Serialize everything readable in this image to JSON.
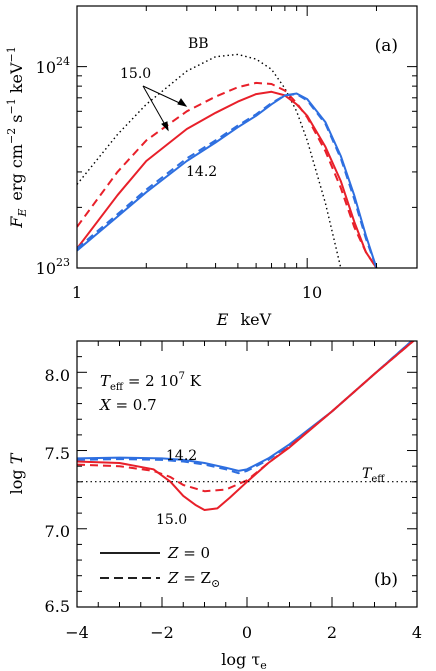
{
  "colors": {
    "red": "#e8202a",
    "blue": "#2e6fe0",
    "black": "#000000"
  },
  "chart_data": [
    {
      "type": "line",
      "panel_label": "(a)",
      "xscale": "log",
      "yscale": "log",
      "xlim": [
        1,
        30
      ],
      "ylim": [
        1e+23,
        2e+24
      ],
      "xlabel": {
        "main": "E",
        "unit": "keV"
      },
      "ylabel": {
        "symbol": "F",
        "sub": "E",
        "unit": "erg cm",
        "e1": "−2",
        "mid": " s",
        "e2": "−1",
        "end": " keV",
        "e3": "−1"
      },
      "x_tick_labels": [
        {
          "x": 1,
          "text": "1"
        },
        {
          "x": 10,
          "text": "10"
        }
      ],
      "y_tick_labels": [
        {
          "y": 1e+23,
          "base": "10",
          "exp": "23"
        },
        {
          "y": 1e+24,
          "base": "10",
          "exp": "24"
        }
      ],
      "annotations": {
        "bb": "BB",
        "logg_high": "15.0",
        "logg_low": "14.2"
      },
      "series": [
        {
          "label": "BB",
          "color": "black",
          "style": "dotted",
          "x": [
            1,
            1.5,
            2,
            3,
            4,
            5,
            6,
            7,
            8,
            9,
            10,
            12,
            14
          ],
          "y": [
            2.6e+23,
            4.6e+23,
            6.5e+23,
            9.5e+23,
            1.12e+24,
            1.15e+24,
            1.09e+24,
            9.7e+23,
            7.8e+23,
            6e+23,
            4.3e+23,
            2.1e+23,
            1e+23
          ]
        },
        {
          "label": "15.0",
          "color": "red",
          "style": "dashed",
          "x": [
            1,
            1.5,
            2,
            3,
            4,
            5,
            6,
            7,
            8,
            9,
            10,
            12,
            14,
            16,
            18,
            20
          ],
          "y": [
            1.6e+23,
            3e+23,
            4.3e+23,
            6e+23,
            7.1e+23,
            7.9e+23,
            8.3e+23,
            8.2e+23,
            7.6e+23,
            6.6e+23,
            5.6e+23,
            3.8e+23,
            2.5e+23,
            1.6e+23,
            1.2e+23,
            1e+23
          ]
        },
        {
          "label": "15.0",
          "color": "red",
          "style": "solid",
          "x": [
            1,
            1.5,
            2,
            3,
            4,
            5,
            6,
            7,
            8,
            9,
            10,
            12,
            14,
            16,
            18,
            20
          ],
          "y": [
            1.25e+23,
            2.3e+23,
            3.4e+23,
            4.9e+23,
            5.9e+23,
            6.7e+23,
            7.3e+23,
            7.5e+23,
            7.2e+23,
            6.5e+23,
            5.7e+23,
            4e+23,
            2.7e+23,
            1.7e+23,
            1.2e+23,
            1e+23
          ]
        },
        {
          "label": "14.2",
          "color": "blue",
          "style": "dashed",
          "x": [
            1,
            1.5,
            2,
            3,
            4,
            5,
            6,
            7,
            8,
            9,
            10,
            12,
            14,
            16,
            18,
            20
          ],
          "y": [
            1.25e+23,
            1.85e+23,
            2.45e+23,
            3.5e+23,
            4.3e+23,
            5.1e+23,
            5.8e+23,
            6.6e+23,
            7.2e+23,
            7.3e+23,
            6.8e+23,
            5.2e+23,
            3.5e+23,
            2.2e+23,
            1.4e+23,
            1e+23
          ]
        },
        {
          "label": "14.2",
          "color": "blue",
          "style": "solid",
          "x": [
            1,
            1.5,
            2,
            3,
            4,
            5,
            6,
            7,
            8,
            9,
            10,
            12,
            14,
            16,
            18,
            20
          ],
          "y": [
            1.22e+23,
            1.8e+23,
            2.38e+23,
            3.4e+23,
            4.2e+23,
            5e+23,
            5.7e+23,
            6.5e+23,
            7.2e+23,
            7.35e+23,
            6.9e+23,
            5.3e+23,
            3.6e+23,
            2.3e+23,
            1.45e+23,
            1e+23
          ]
        }
      ]
    },
    {
      "type": "line",
      "panel_label": "(b)",
      "xlim": [
        -4,
        4
      ],
      "ylim": [
        6.5,
        8.2
      ],
      "xlabel": {
        "main": "log τ",
        "sub": "e"
      },
      "ylabel": {
        "main": "log ",
        "symbol": "T"
      },
      "x_tick_labels": [
        "−4",
        "−2",
        "0",
        "2",
        "4"
      ],
      "x_ticks": [
        -4,
        -2,
        0,
        2,
        4
      ],
      "y_ticks": [
        6.5,
        7.0,
        7.5,
        8.0
      ],
      "y_tick_labels": [
        "6.5",
        "7.0",
        "7.5",
        "8.0"
      ],
      "params": {
        "teff_sym": "T",
        "teff_sub": "eff",
        "teff_val": " = 2 10",
        "teff_exp": "7",
        "teff_unit": " K",
        "x_sym": "X",
        "x_val": " = 0.7"
      },
      "t_eff_label": {
        "sym": "T",
        "sub": "eff"
      },
      "t_eff_value": 7.301,
      "annotations": {
        "upper": "14.2",
        "lower": "15.0"
      },
      "legend": {
        "placement": "bottom-left",
        "entries": [
          {
            "style": "solid",
            "sym": "Z",
            "text": " = 0"
          },
          {
            "style": "dashed",
            "sym": "Z",
            "text": " = Z",
            "sub": "⊙"
          }
        ]
      },
      "series": [
        {
          "label": "14.2",
          "color": "blue",
          "style": "solid",
          "x": [
            -4,
            -3,
            -2,
            -1.5,
            -1,
            -0.5,
            -0.2,
            0,
            0.5,
            1,
            2,
            3,
            4
          ],
          "y": [
            7.45,
            7.455,
            7.45,
            7.44,
            7.42,
            7.39,
            7.37,
            7.38,
            7.45,
            7.54,
            7.75,
            7.99,
            8.23
          ]
        },
        {
          "label": "14.2",
          "color": "blue",
          "style": "dashed",
          "x": [
            -4,
            -3,
            -2,
            -1.5,
            -1,
            -0.5,
            -0.2,
            0,
            0.5,
            1,
            2,
            3,
            4
          ],
          "y": [
            7.44,
            7.445,
            7.44,
            7.43,
            7.41,
            7.38,
            7.355,
            7.37,
            7.44,
            7.535,
            7.75,
            7.99,
            8.23
          ]
        },
        {
          "label": "15.0",
          "color": "red",
          "style": "solid",
          "x": [
            -4,
            -3,
            -2.2,
            -1.8,
            -1.5,
            -1.2,
            -1,
            -0.7,
            -0.4,
            0,
            0.5,
            1,
            2,
            3,
            4
          ],
          "y": [
            7.43,
            7.42,
            7.38,
            7.3,
            7.21,
            7.15,
            7.12,
            7.13,
            7.2,
            7.3,
            7.42,
            7.52,
            7.75,
            7.99,
            8.22
          ]
        },
        {
          "label": "15.0",
          "color": "red",
          "style": "dashed",
          "x": [
            -4,
            -3,
            -2.2,
            -1.8,
            -1.5,
            -1,
            -0.5,
            0,
            0.5,
            1,
            2,
            3,
            4
          ],
          "y": [
            7.41,
            7.4,
            7.37,
            7.33,
            7.28,
            7.24,
            7.25,
            7.31,
            7.42,
            7.525,
            7.75,
            7.99,
            8.22
          ]
        }
      ]
    }
  ]
}
